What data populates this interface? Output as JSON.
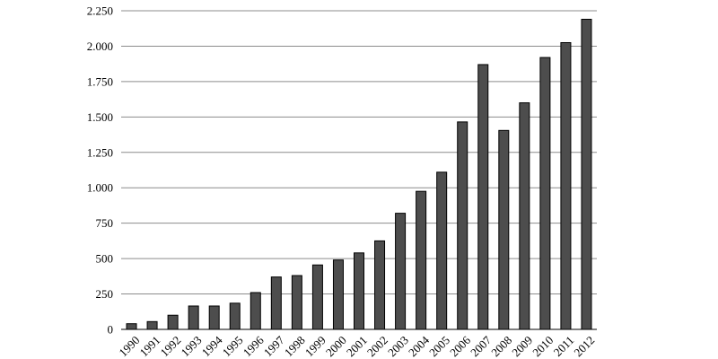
{
  "chart_data": {
    "type": "bar",
    "title": "",
    "xlabel": "",
    "ylabel": "",
    "ylim": [
      0,
      2250
    ],
    "yticks": [
      0,
      250,
      500,
      750,
      1000,
      1250,
      1500,
      1750,
      2000,
      2250
    ],
    "ytick_labels": [
      "0",
      "250",
      "500",
      "750",
      "1.000",
      "1.250",
      "1.500",
      "1.750",
      "2.000",
      "2.250"
    ],
    "grid": true,
    "bar_color": "#4d4d4d",
    "categories": [
      "1990",
      "1991",
      "1992",
      "1993",
      "1994",
      "1995",
      "1996",
      "1997",
      "1998",
      "1999",
      "2000",
      "2001",
      "2002",
      "2003",
      "2004",
      "2005",
      "2006",
      "2007",
      "2008",
      "2009",
      "2010",
      "2011",
      "2012"
    ],
    "values": [
      40,
      55,
      100,
      165,
      165,
      185,
      260,
      370,
      380,
      455,
      490,
      540,
      625,
      820,
      975,
      1110,
      1465,
      1870,
      1405,
      1600,
      1920,
      2025,
      2190
    ]
  }
}
